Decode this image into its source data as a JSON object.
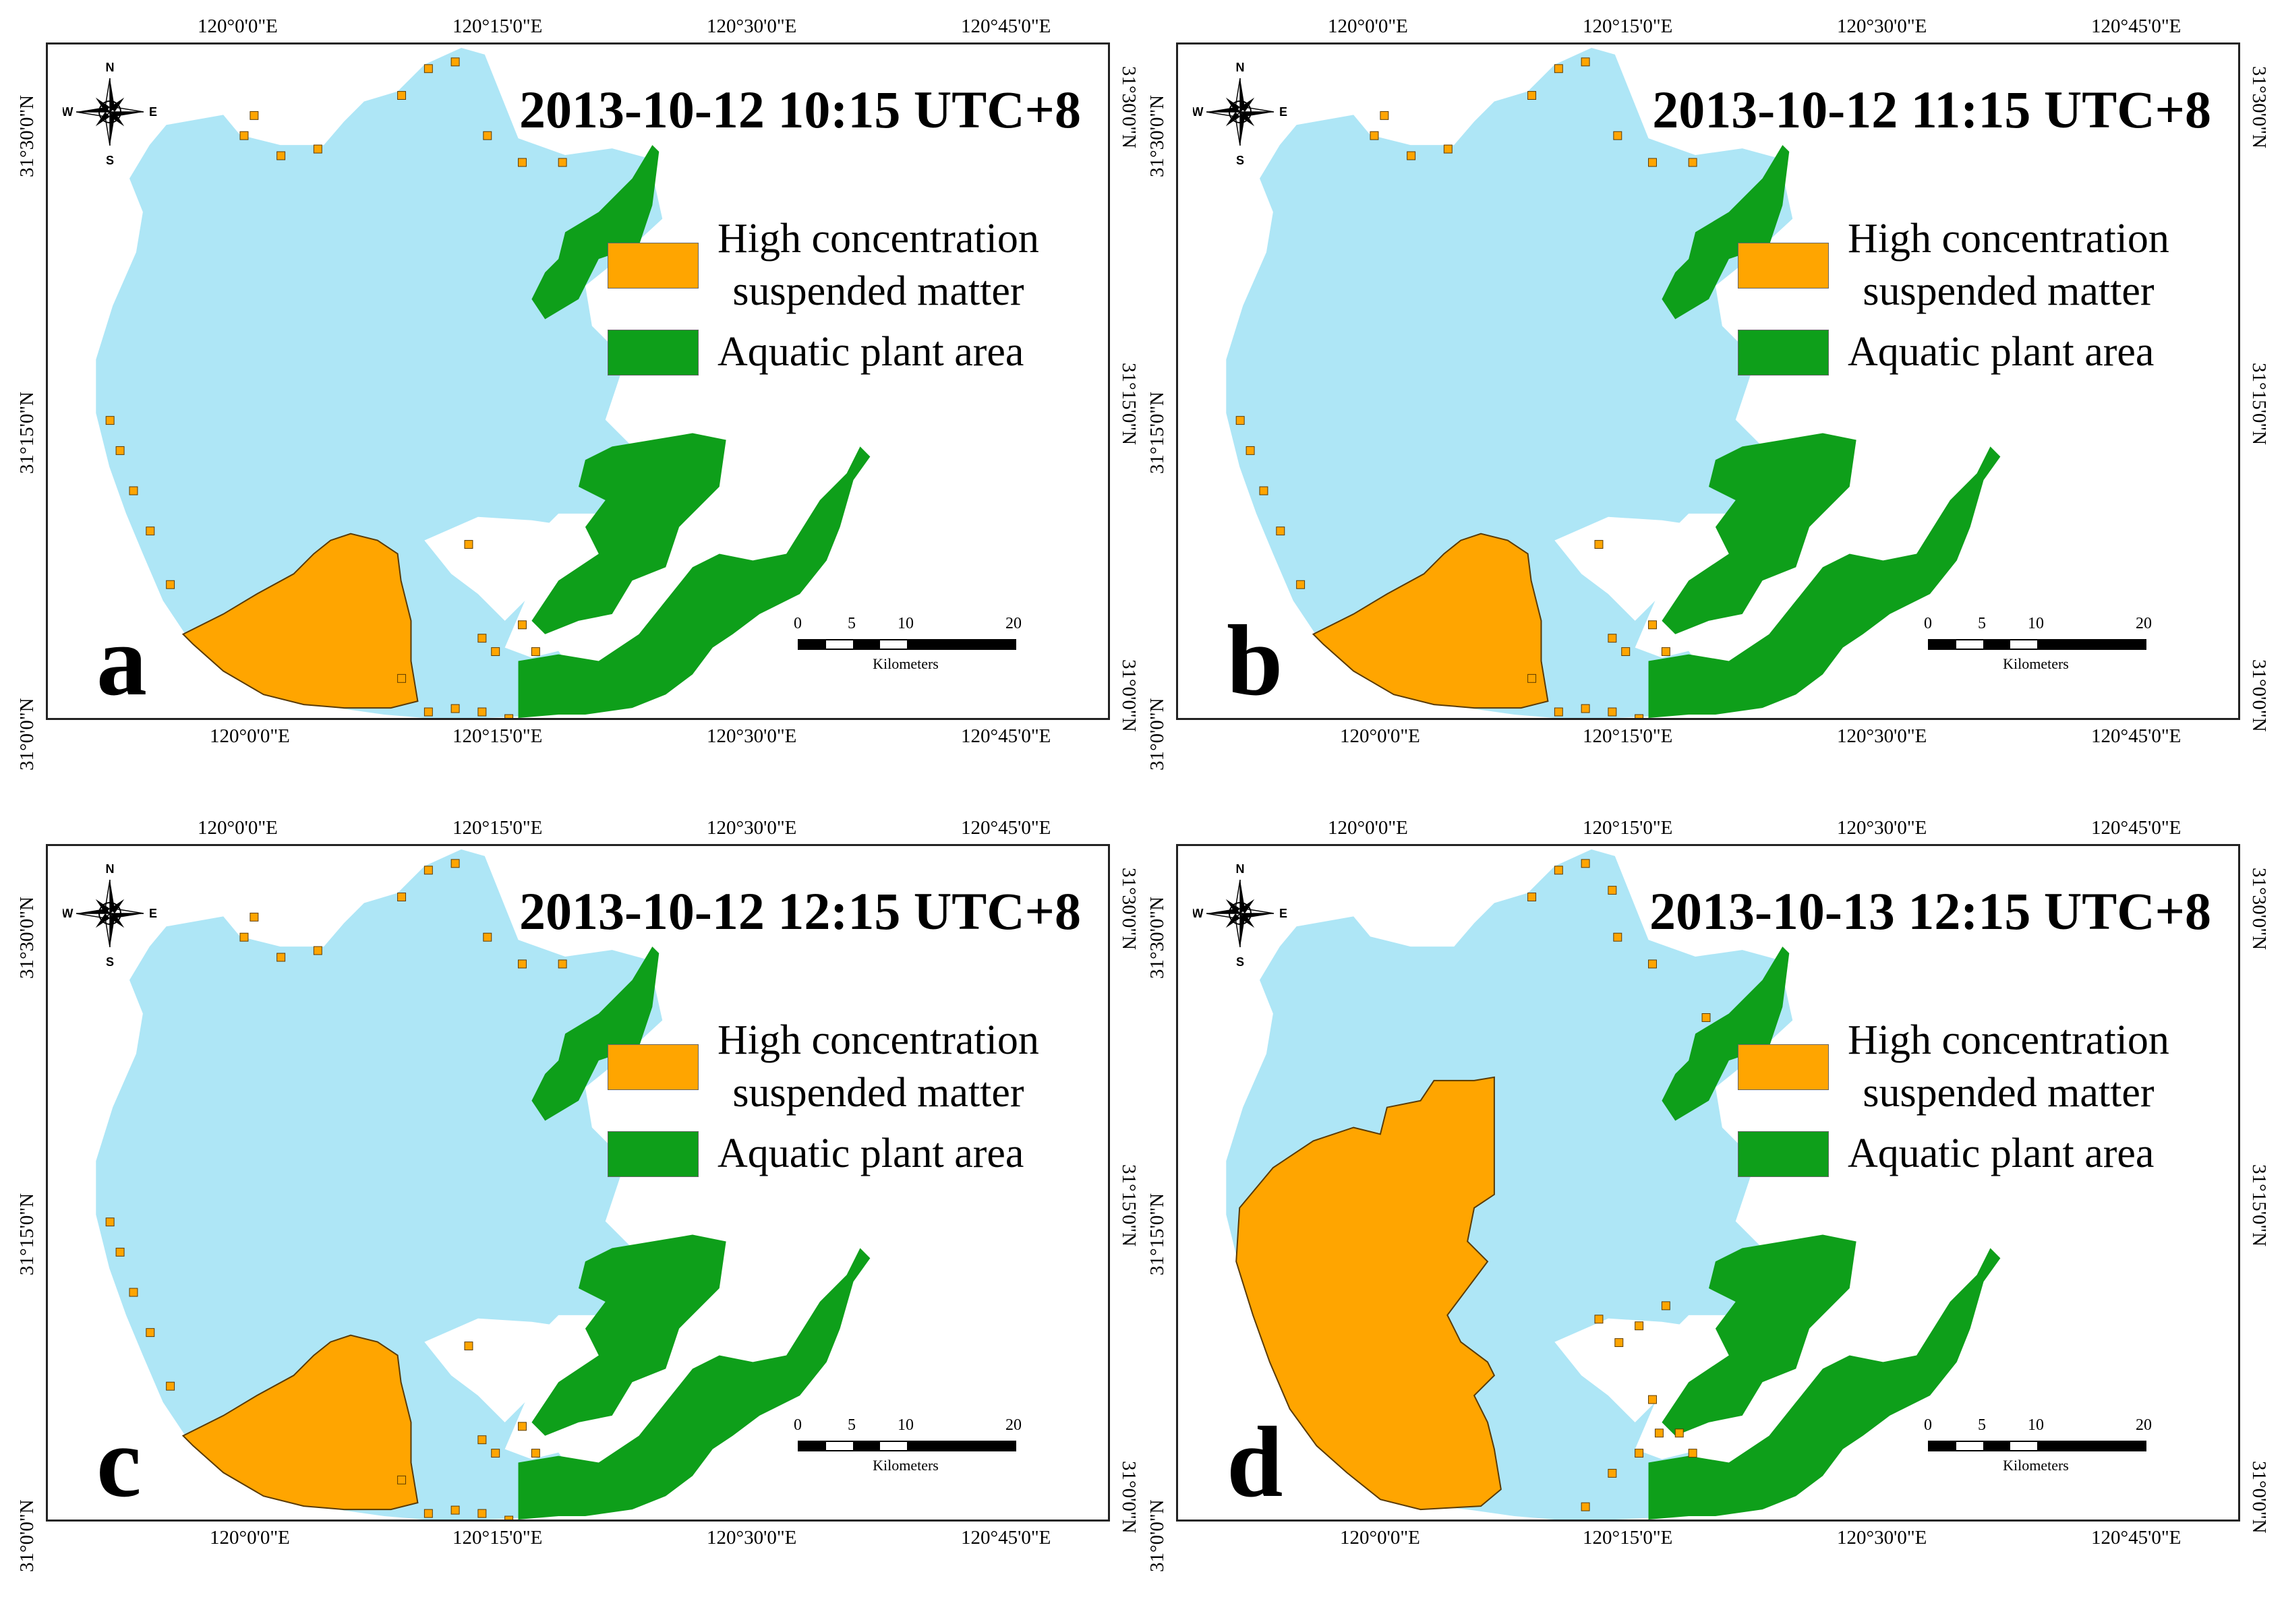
{
  "figure": {
    "colors": {
      "lake": "#aee6f6",
      "suspended_matter": "#ffa500",
      "aquatic_plant": "#0e9f1a",
      "land": "#ffffff",
      "frame": "#222222"
    },
    "legend": {
      "suspended_line1": "High concentration",
      "suspended_line2": "suspended matter",
      "plant": "Aquatic plant area"
    },
    "compass": {
      "n": "N",
      "s": "S",
      "e": "E",
      "w": "W"
    },
    "scale": {
      "ticks": [
        "0",
        "5",
        "10",
        "20"
      ],
      "unit": "Kilometers"
    },
    "longitude_ticks": [
      "120°0'0\"E",
      "120°15'0\"E",
      "120°30'0\"E",
      "120°45'0\"E"
    ],
    "latitude_ticks": [
      "31°30'0\"N",
      "31°15'0\"N",
      "31°0'0\"N"
    ],
    "panels": [
      {
        "label": "a",
        "timestamp": "2013-10-12 10:15 UTC+8",
        "suspended_extent": "southwest-bay"
      },
      {
        "label": "b",
        "timestamp": "2013-10-12 11:15 UTC+8",
        "suspended_extent": "southwest-bay"
      },
      {
        "label": "c",
        "timestamp": "2013-10-12 12:15 UTC+8",
        "suspended_extent": "southwest-bay"
      },
      {
        "label": "d",
        "timestamp": "2013-10-13 12:15 UTC+8",
        "suspended_extent": "western-half"
      }
    ]
  }
}
